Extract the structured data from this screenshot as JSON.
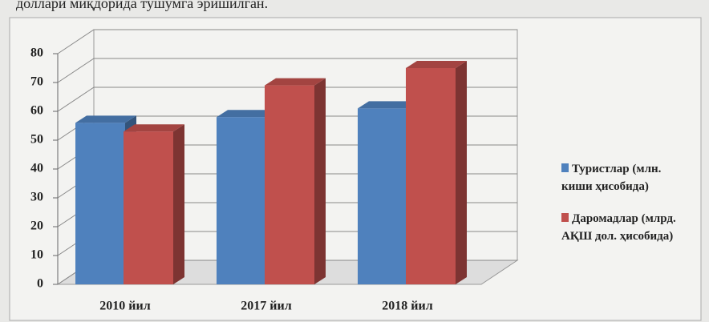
{
  "caption": "доллари миқдорида тушумга эришилган.",
  "chart_data": {
    "type": "bar3d",
    "categories": [
      "2010 йил",
      "2017 йил",
      "2018 йил"
    ],
    "series": [
      {
        "name": "Туристлар (млн. киши ҳисобида)",
        "color": "#4f81bd",
        "values": [
          56,
          58,
          61
        ]
      },
      {
        "name": "Даромадлар (млрд. АҚШ дол. ҳисобида)",
        "color": "#c0504d",
        "values": [
          53,
          69,
          75
        ]
      }
    ],
    "ylim": [
      0,
      80
    ],
    "yticks": [
      0,
      10,
      20,
      30,
      40,
      50,
      60,
      70,
      80
    ],
    "grid": true,
    "legend": "right"
  }
}
